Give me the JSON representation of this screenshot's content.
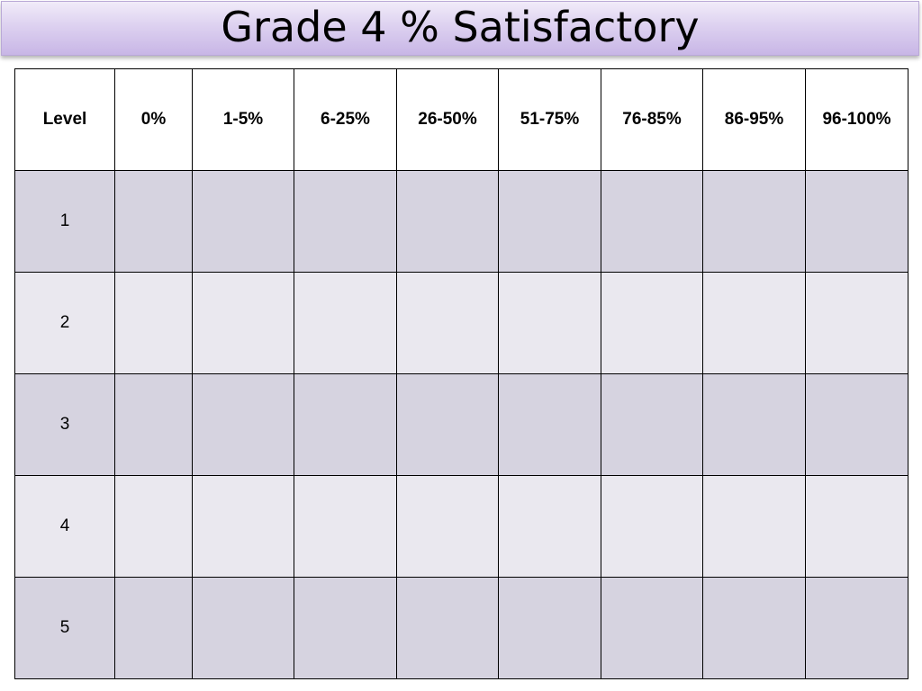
{
  "title": "Grade 4 % Satisfactory",
  "table": {
    "headers": [
      "Level",
      "0%",
      "1-5%",
      "6-25%",
      "26-50%",
      "51-75%",
      "76-85%",
      "86-95%",
      "96-100%"
    ],
    "rows": [
      {
        "level": "1"
      },
      {
        "level": "2"
      },
      {
        "level": "3"
      },
      {
        "level": "4"
      },
      {
        "level": "5"
      }
    ]
  },
  "colors": {
    "title_gradient_top": "#f1ecf9",
    "title_gradient_bottom": "#c8b6e6",
    "row_dark": "#d6d3e0",
    "row_light": "#eae8ef",
    "grid_line": "#000000"
  }
}
